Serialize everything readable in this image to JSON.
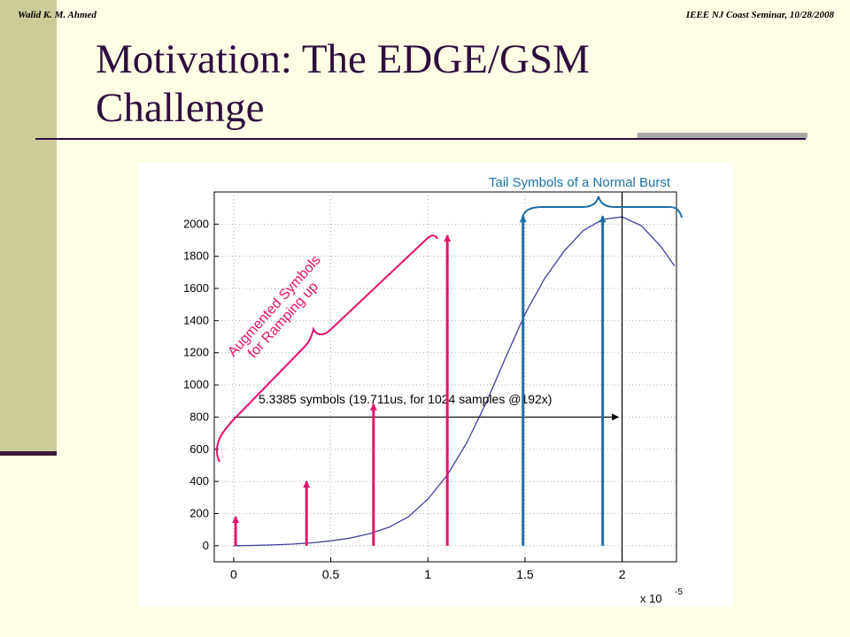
{
  "header": {
    "author": "Walid K. M. Ahmed",
    "event": "IEEE NJ Coast Seminar, 10/28/2008"
  },
  "slide": {
    "title_line1": "Motivation: The EDGE/GSM",
    "title_line2": "Challenge"
  },
  "chart_data": {
    "type": "line",
    "xlim": [
      -0.1,
      2.28
    ],
    "ylim": [
      -100,
      2200
    ],
    "x_ticks": [
      0,
      0.5,
      1,
      1.5,
      2
    ],
    "x_tick_labels": [
      "0",
      "0.5",
      "1",
      "1.5",
      "2"
    ],
    "y_ticks": [
      0,
      200,
      400,
      600,
      800,
      1000,
      1200,
      1400,
      1600,
      1800,
      2000
    ],
    "x_multiplier": "x 10",
    "x_multiplier_exp": "-5",
    "grid": true,
    "series": [
      {
        "color": "#3F3F9F",
        "x": [
          0,
          0.1,
          0.2,
          0.3,
          0.4,
          0.5,
          0.6,
          0.7,
          0.8,
          0.9,
          1.0,
          1.1,
          1.2,
          1.3,
          1.4,
          1.5,
          1.6,
          1.7,
          1.8,
          1.9,
          2.0,
          2.1,
          2.2,
          2.27
        ],
        "y": [
          0,
          2,
          5,
          10,
          18,
          30,
          48,
          75,
          115,
          180,
          290,
          440,
          640,
          890,
          1170,
          1440,
          1660,
          1830,
          1960,
          2030,
          2045,
          1990,
          1860,
          1740
        ]
      }
    ],
    "pink_arrows": {
      "color": "#E4136C",
      "x": [
        0.01,
        0.375,
        0.72,
        1.1
      ],
      "y": [
        180,
        400,
        880,
        1930
      ]
    },
    "blue_arrows": {
      "color": "#1E6FA8",
      "x": [
        1.49,
        1.9
      ],
      "y": [
        2050,
        2050
      ]
    },
    "vertical_line_x": 2.0,
    "horizontal_arrow": {
      "y": 800,
      "x_start": 0,
      "x_end": 1.98
    },
    "annotations": {
      "duration": "5.3385 symbols (19.711us, for 1024 samples @192x)",
      "tail": "Tail Symbols of a Normal Burst",
      "augmented_line1": "Augmented Symbols",
      "augmented_line2": "for Ramping up"
    },
    "colors": {
      "annotation_pink": "#E4136C",
      "annotation_blue": "#1E6FA8",
      "curve": "#3F3F9F"
    }
  }
}
